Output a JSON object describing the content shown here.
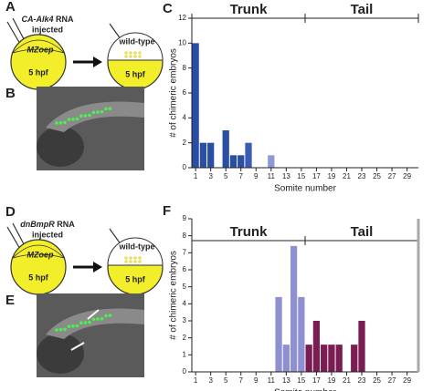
{
  "diagrams": [
    {
      "panel": "A",
      "rna": "CA-Alk4",
      "rna_suffix": " RNA",
      "injected": "injected",
      "donor": "MZoep",
      "donor_stage": "5 hpf",
      "host": "wild-type",
      "host_stage": "5 hpf"
    },
    {
      "panel": "D",
      "rna": "dnBmpR",
      "rna_suffix": " RNA",
      "injected": "injected",
      "donor": "MZoep",
      "donor_stage": "5 hpf",
      "host": "wild-type",
      "host_stage": "5 hpf"
    }
  ],
  "images": [
    {
      "panel": "B"
    },
    {
      "panel": "E"
    }
  ],
  "chart_data": [
    {
      "type": "bar",
      "panel_label": "C",
      "x": [
        1,
        2,
        3,
        5,
        6,
        7,
        8,
        11
      ],
      "values": [
        10,
        2,
        2,
        3,
        1,
        1,
        2,
        1
      ],
      "colors": [
        "#2a4ea3",
        "#2a4ea3",
        "#2a4ea3",
        "#2a4ea3",
        "#2a4ea3",
        "#2a4ea3",
        "#3a5cb2",
        "#8e98d6"
      ],
      "xlim": [
        0.5,
        30.5
      ],
      "xticks": [
        1,
        3,
        5,
        7,
        9,
        11,
        13,
        15,
        17,
        19,
        21,
        23,
        25,
        27,
        29
      ],
      "ylim": [
        0,
        12
      ],
      "yticks": [
        0,
        2,
        4,
        6,
        8,
        10,
        12
      ],
      "xlabel": "Somite number",
      "ylabel": "# of chimeric embryos",
      "regions": [
        {
          "label": "Trunk",
          "color": "#7f86c8",
          "from": 0.5,
          "to": 15.5
        },
        {
          "label": "Tail",
          "color": "#7b1f4f",
          "from": 15.5,
          "to": 30.5
        }
      ]
    },
    {
      "type": "bar",
      "panel_label": "F",
      "x": [
        12,
        13,
        14,
        15,
        16,
        17,
        18,
        19,
        20,
        22,
        23
      ],
      "values": [
        4.4,
        1.6,
        7.4,
        4.4,
        1.6,
        3,
        1.6,
        1.6,
        1.6,
        1.6,
        3
      ],
      "colors": [
        "#8f90d2",
        "#8f90d2",
        "#8f90d2",
        "#8f90d2",
        "#7a1d52",
        "#7a1d52",
        "#7a1d52",
        "#7a1d52",
        "#7a1d52",
        "#7a1d52",
        "#7a1d52"
      ],
      "xlim": [
        0.5,
        30.5
      ],
      "xticks": [
        1,
        3,
        5,
        7,
        9,
        11,
        13,
        15,
        17,
        19,
        21,
        23,
        25,
        27,
        29
      ],
      "ylim": [
        0,
        9
      ],
      "yticks": [
        0,
        1,
        2,
        3,
        4,
        5,
        6,
        7,
        8,
        9
      ],
      "xlabel": "Somite number",
      "ylabel": "# of chimeric embryos",
      "regions": [
        {
          "label": "Trunk",
          "color": "#7f86c8",
          "from": 0.5,
          "to": 15.5
        },
        {
          "label": "Tail",
          "color": "#7b1f4f",
          "from": 15.5,
          "to": 30.5
        }
      ]
    }
  ]
}
